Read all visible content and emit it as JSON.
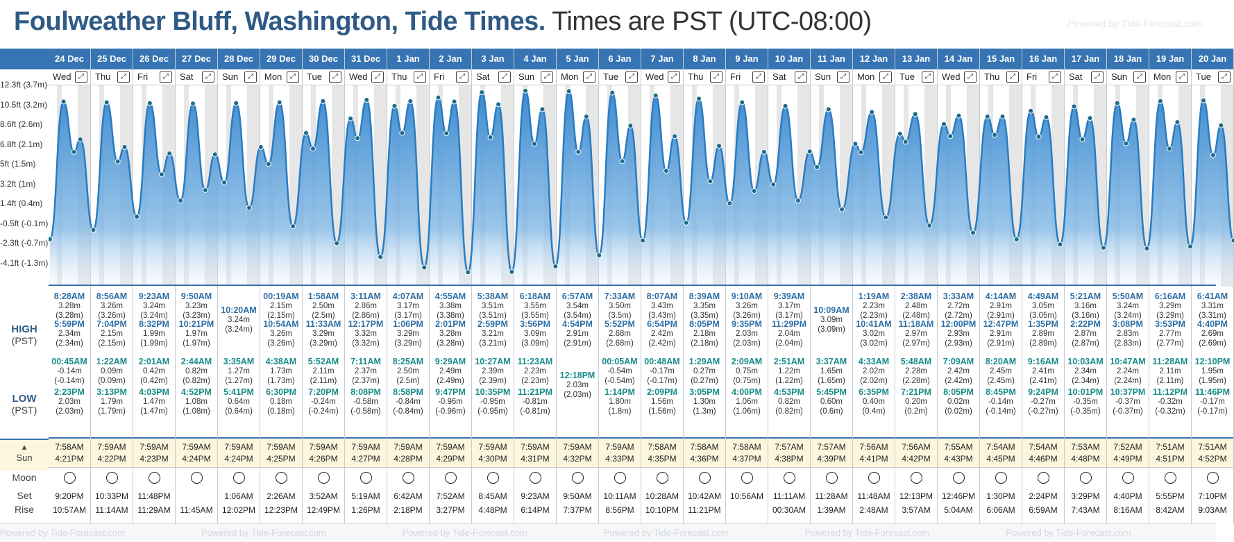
{
  "header": {
    "place": "Foulweather Bluff, Washington, Tide Times.",
    "timezone": "Times are PST (UTC-08:00)",
    "powered": "Powered by Tide-Forecast.com"
  },
  "yaxis": [
    "12.3ft (3.7m)",
    "10.5ft (3.2m)",
    "8.6ft (2.6m)",
    "6.8ft (2.1m)",
    "5ft (1.5m)",
    "3.2ft (1m)",
    "1.4ft (0.4m)",
    "-0.5ft (-0.1m)",
    "-2.3ft (-0.7m)",
    "-4.1ft (-1.3m)"
  ],
  "labels": {
    "high": "HIGH",
    "high_sub": "(PST)",
    "low": "LOW",
    "low_sub": "(PST)",
    "sun": "Sun",
    "moon": "Moon",
    "set": "Set",
    "rise": "Rise"
  },
  "days": [
    {
      "date": "24 Dec",
      "dow": "Wed",
      "h1": [
        "8:28AM",
        "3.28m",
        "(3.28m)"
      ],
      "h2": [
        "5:59PM",
        "2.34m",
        "(2.34m)"
      ],
      "l1": [
        "00:45AM",
        "-0.14m",
        "(-0.14m)"
      ],
      "l2": [
        "2:23PM",
        "2.03m",
        "(2.03m)"
      ],
      "sunrise": "7:58AM",
      "sunset": "4:21PM",
      "mset": "9:20PM",
      "mrise": "10:57AM"
    },
    {
      "date": "25 Dec",
      "dow": "Thu",
      "h1": [
        "8:56AM",
        "3.26m",
        "(3.26m)"
      ],
      "h2": [
        "7:04PM",
        "2.15m",
        "(2.15m)"
      ],
      "l1": [
        "1:22AM",
        "0.09m",
        "(0.09m)"
      ],
      "l2": [
        "3:13PM",
        "1.79m",
        "(1.79m)"
      ],
      "sunrise": "7:59AM",
      "sunset": "4:22PM",
      "mset": "10:33PM",
      "mrise": "11:14AM"
    },
    {
      "date": "26 Dec",
      "dow": "Fri",
      "h1": [
        "9:23AM",
        "3.24m",
        "(3.24m)"
      ],
      "h2": [
        "8:32PM",
        "1.99m",
        "(1.99m)"
      ],
      "l1": [
        "2:01AM",
        "0.42m",
        "(0.42m)"
      ],
      "l2": [
        "4:03PM",
        "1.47m",
        "(1.47m)"
      ],
      "sunrise": "7:59AM",
      "sunset": "4:23PM",
      "mset": "11:48PM",
      "mrise": "11:29AM"
    },
    {
      "date": "27 Dec",
      "dow": "Sat",
      "h1": [
        "9:50AM",
        "3.23m",
        "(3.23m)"
      ],
      "h2": [
        "10:21PM",
        "1.97m",
        "(1.97m)"
      ],
      "l1": [
        "2:44AM",
        "0.82m",
        "(0.82m)"
      ],
      "l2": [
        "4:52PM",
        "1.08m",
        "(1.08m)"
      ],
      "sunrise": "7:59AM",
      "sunset": "4:24PM",
      "mset": "",
      "mrise": "11:45AM"
    },
    {
      "date": "28 Dec",
      "dow": "Sun",
      "h1": [
        "10:20AM",
        "3.24m",
        "(3.24m)"
      ],
      "h2": null,
      "l1": [
        "3:35AM",
        "1.27m",
        "(1.27m)"
      ],
      "l2": [
        "5:41PM",
        "0.64m",
        "(0.64m)"
      ],
      "sunrise": "7:59AM",
      "sunset": "4:24PM",
      "mset": "1:06AM",
      "mrise": "12:02PM"
    },
    {
      "date": "29 Dec",
      "dow": "Mon",
      "h1": [
        "00:19AM",
        "2.15m",
        "(2.15m)"
      ],
      "h2": [
        "10:54AM",
        "3.26m",
        "(3.26m)"
      ],
      "l1": [
        "4:38AM",
        "1.73m",
        "(1.73m)"
      ],
      "l2": [
        "6:30PM",
        "0.18m",
        "(0.18m)"
      ],
      "sunrise": "7:59AM",
      "sunset": "4:25PM",
      "mset": "2:26AM",
      "mrise": "12:23PM"
    },
    {
      "date": "30 Dec",
      "dow": "Tue",
      "h1": [
        "1:58AM",
        "2.50m",
        "(2.5m)"
      ],
      "h2": [
        "11:33AM",
        "3.29m",
        "(3.29m)"
      ],
      "l1": [
        "5:52AM",
        "2.11m",
        "(2.11m)"
      ],
      "l2": [
        "7:20PM",
        "-0.24m",
        "(-0.24m)"
      ],
      "sunrise": "7:59AM",
      "sunset": "4:26PM",
      "mset": "3:52AM",
      "mrise": "12:49PM"
    },
    {
      "date": "31 Dec",
      "dow": "Wed",
      "h1": [
        "3:11AM",
        "2.86m",
        "(2.86m)"
      ],
      "h2": [
        "12:17PM",
        "3.32m",
        "(3.32m)"
      ],
      "l1": [
        "7:11AM",
        "2.37m",
        "(2.37m)"
      ],
      "l2": [
        "8:08PM",
        "-0.58m",
        "(-0.58m)"
      ],
      "sunrise": "7:59AM",
      "sunset": "4:27PM",
      "mset": "5:19AM",
      "mrise": "1:26PM"
    },
    {
      "date": "1 Jan",
      "dow": "Thu",
      "h1": [
        "4:07AM",
        "3.17m",
        "(3.17m)"
      ],
      "h2": [
        "1:06PM",
        "3.29m",
        "(3.29m)"
      ],
      "l1": [
        "8:25AM",
        "2.50m",
        "(2.5m)"
      ],
      "l2": [
        "8:58PM",
        "-0.84m",
        "(-0.84m)"
      ],
      "sunrise": "7:59AM",
      "sunset": "4:28PM",
      "mset": "6:42AM",
      "mrise": "2:18PM"
    },
    {
      "date": "2 Jan",
      "dow": "Fri",
      "h1": [
        "4:55AM",
        "3.38m",
        "(3.38m)"
      ],
      "h2": [
        "2:01PM",
        "3.28m",
        "(3.28m)"
      ],
      "l1": [
        "9:29AM",
        "2.49m",
        "(2.49m)"
      ],
      "l2": [
        "9:47PM",
        "-0.96m",
        "(-0.96m)"
      ],
      "sunrise": "7:59AM",
      "sunset": "4:29PM",
      "mset": "7:52AM",
      "mrise": "3:27PM"
    },
    {
      "date": "3 Jan",
      "dow": "Sat",
      "h1": [
        "5:38AM",
        "3.51m",
        "(3.51m)"
      ],
      "h2": [
        "2:59PM",
        "3.21m",
        "(3.21m)"
      ],
      "l1": [
        "10:27AM",
        "2.39m",
        "(2.39m)"
      ],
      "l2": [
        "10:35PM",
        "-0.95m",
        "(-0.95m)"
      ],
      "sunrise": "7:59AM",
      "sunset": "4:30PM",
      "mset": "8:45AM",
      "mrise": "4:48PM"
    },
    {
      "date": "4 Jan",
      "dow": "Sun",
      "h1": [
        "6:18AM",
        "3.55m",
        "(3.55m)"
      ],
      "h2": [
        "3:56PM",
        "3.09m",
        "(3.09m)"
      ],
      "l1": [
        "11:23AM",
        "2.23m",
        "(2.23m)"
      ],
      "l2": [
        "11:21PM",
        "-0.81m",
        "(-0.81m)"
      ],
      "sunrise": "7:59AM",
      "sunset": "4:31PM",
      "mset": "9:23AM",
      "mrise": "6:14PM"
    },
    {
      "date": "5 Jan",
      "dow": "Mon",
      "h1": [
        "6:57AM",
        "3.54m",
        "(3.54m)"
      ],
      "h2": [
        "4:54PM",
        "2.91m",
        "(2.91m)"
      ],
      "l1": [
        "12:18PM",
        "2.03m",
        "(2.03m)"
      ],
      "l2": null,
      "sunrise": "7:59AM",
      "sunset": "4:32PM",
      "mset": "9:50AM",
      "mrise": "7:37PM"
    },
    {
      "date": "6 Jan",
      "dow": "Tue",
      "h1": [
        "7:33AM",
        "3.50m",
        "(3.5m)"
      ],
      "h2": [
        "5:52PM",
        "2.68m",
        "(2.68m)"
      ],
      "l1": [
        "00:05AM",
        "-0.54m",
        "(-0.54m)"
      ],
      "l2": [
        "1:14PM",
        "1.80m",
        "(1.8m)"
      ],
      "sunrise": "7:59AM",
      "sunset": "4:33PM",
      "mset": "10:11AM",
      "mrise": "8:56PM"
    },
    {
      "date": "7 Jan",
      "dow": "Wed",
      "h1": [
        "8:07AM",
        "3.43m",
        "(3.43m)"
      ],
      "h2": [
        "6:54PM",
        "2.42m",
        "(2.42m)"
      ],
      "l1": [
        "00:48AM",
        "-0.17m",
        "(-0.17m)"
      ],
      "l2": [
        "2:09PM",
        "1.56m",
        "(1.56m)"
      ],
      "sunrise": "7:58AM",
      "sunset": "4:35PM",
      "mset": "10:28AM",
      "mrise": "10:10PM"
    },
    {
      "date": "8 Jan",
      "dow": "Thu",
      "h1": [
        "8:39AM",
        "3.35m",
        "(3.35m)"
      ],
      "h2": [
        "8:05PM",
        "2.18m",
        "(2.18m)"
      ],
      "l1": [
        "1:29AM",
        "0.27m",
        "(0.27m)"
      ],
      "l2": [
        "3:05PM",
        "1.30m",
        "(1.3m)"
      ],
      "sunrise": "7:58AM",
      "sunset": "4:36PM",
      "mset": "10:42AM",
      "mrise": "11:21PM"
    },
    {
      "date": "9 Jan",
      "dow": "Fri",
      "h1": [
        "9:10AM",
        "3.26m",
        "(3.26m)"
      ],
      "h2": [
        "9:35PM",
        "2.03m",
        "(2.03m)"
      ],
      "l1": [
        "2:09AM",
        "0.75m",
        "(0.75m)"
      ],
      "l2": [
        "4:00PM",
        "1.06m",
        "(1.06m)"
      ],
      "sunrise": "7:58AM",
      "sunset": "4:37PM",
      "mset": "10:56AM",
      "mrise": ""
    },
    {
      "date": "10 Jan",
      "dow": "Sat",
      "h1": [
        "9:39AM",
        "3.17m",
        "(3.17m)"
      ],
      "h2": [
        "11:29PM",
        "2.04m",
        "(2.04m)"
      ],
      "l1": [
        "2:51AM",
        "1.22m",
        "(1.22m)"
      ],
      "l2": [
        "4:53PM",
        "0.82m",
        "(0.82m)"
      ],
      "sunrise": "7:57AM",
      "sunset": "4:38PM",
      "mset": "11:11AM",
      "mrise": "00:30AM"
    },
    {
      "date": "11 Jan",
      "dow": "Sun",
      "h1": [
        "10:09AM",
        "3.09m",
        "(3.09m)"
      ],
      "h2": null,
      "l1": [
        "3:37AM",
        "1.65m",
        "(1.65m)"
      ],
      "l2": [
        "5:45PM",
        "0.60m",
        "(0.6m)"
      ],
      "sunrise": "7:57AM",
      "sunset": "4:39PM",
      "mset": "11:28AM",
      "mrise": "1:39AM"
    },
    {
      "date": "12 Jan",
      "dow": "Mon",
      "h1": [
        "1:19AM",
        "2.23m",
        "(2.23m)"
      ],
      "h2": [
        "10:41AM",
        "3.02m",
        "(3.02m)"
      ],
      "l1": [
        "4:33AM",
        "2.02m",
        "(2.02m)"
      ],
      "l2": [
        "6:35PM",
        "0.40m",
        "(0.4m)"
      ],
      "sunrise": "7:56AM",
      "sunset": "4:41PM",
      "mset": "11:48AM",
      "mrise": "2:48AM"
    },
    {
      "date": "13 Jan",
      "dow": "Tue",
      "h1": [
        "2:38AM",
        "2.48m",
        "(2.48m)"
      ],
      "h2": [
        "11:18AM",
        "2.97m",
        "(2.97m)"
      ],
      "l1": [
        "5:48AM",
        "2.28m",
        "(2.28m)"
      ],
      "l2": [
        "7:21PM",
        "0.20m",
        "(0.2m)"
      ],
      "sunrise": "7:56AM",
      "sunset": "4:42PM",
      "mset": "12:13PM",
      "mrise": "3:57AM"
    },
    {
      "date": "14 Jan",
      "dow": "Wed",
      "h1": [
        "3:33AM",
        "2.72m",
        "(2.72m)"
      ],
      "h2": [
        "12:00PM",
        "2.93m",
        "(2.93m)"
      ],
      "l1": [
        "7:09AM",
        "2.42m",
        "(2.42m)"
      ],
      "l2": [
        "8:05PM",
        "0.02m",
        "(0.02m)"
      ],
      "sunrise": "7:55AM",
      "sunset": "4:43PM",
      "mset": "12:46PM",
      "mrise": "5:04AM"
    },
    {
      "date": "15 Jan",
      "dow": "Thu",
      "h1": [
        "4:14AM",
        "2.91m",
        "(2.91m)"
      ],
      "h2": [
        "12:47PM",
        "2.91m",
        "(2.91m)"
      ],
      "l1": [
        "8:20AM",
        "2.45m",
        "(2.45m)"
      ],
      "l2": [
        "8:45PM",
        "-0.14m",
        "(-0.14m)"
      ],
      "sunrise": "7:54AM",
      "sunset": "4:45PM",
      "mset": "1:30PM",
      "mrise": "6:06AM"
    },
    {
      "date": "16 Jan",
      "dow": "Fri",
      "h1": [
        "4:49AM",
        "3.05m",
        "(3.05m)"
      ],
      "h2": [
        "1:35PM",
        "2.89m",
        "(2.89m)"
      ],
      "l1": [
        "9:16AM",
        "2.41m",
        "(2.41m)"
      ],
      "l2": [
        "9:24PM",
        "-0.27m",
        "(-0.27m)"
      ],
      "sunrise": "7:54AM",
      "sunset": "4:46PM",
      "mset": "2:24PM",
      "mrise": "6:59AM"
    },
    {
      "date": "17 Jan",
      "dow": "Sat",
      "h1": [
        "5:21AM",
        "3.16m",
        "(3.16m)"
      ],
      "h2": [
        "2:22PM",
        "2.87m",
        "(2.87m)"
      ],
      "l1": [
        "10:03AM",
        "2.34m",
        "(2.34m)"
      ],
      "l2": [
        "10:01PM",
        "-0.35m",
        "(-0.35m)"
      ],
      "sunrise": "7:53AM",
      "sunset": "4:48PM",
      "mset": "3:29PM",
      "mrise": "7:43AM"
    },
    {
      "date": "18 Jan",
      "dow": "Sun",
      "h1": [
        "5:50AM",
        "3.24m",
        "(3.24m)"
      ],
      "h2": [
        "3:08PM",
        "2.83m",
        "(2.83m)"
      ],
      "l1": [
        "10:47AM",
        "2.24m",
        "(2.24m)"
      ],
      "l2": [
        "10:37PM",
        "-0.37m",
        "(-0.37m)"
      ],
      "sunrise": "7:52AM",
      "sunset": "4:49PM",
      "mset": "4:40PM",
      "mrise": "8:16AM"
    },
    {
      "date": "19 Jan",
      "dow": "Mon",
      "h1": [
        "6:16AM",
        "3.29m",
        "(3.29m)"
      ],
      "h2": [
        "3:53PM",
        "2.77m",
        "(2.77m)"
      ],
      "l1": [
        "11:28AM",
        "2.11m",
        "(2.11m)"
      ],
      "l2": [
        "11:12PM",
        "-0.32m",
        "(-0.32m)"
      ],
      "sunrise": "7:51AM",
      "sunset": "4:51PM",
      "mset": "5:55PM",
      "mrise": "8:42AM"
    },
    {
      "date": "20 Jan",
      "dow": "Tue",
      "h1": [
        "6:41AM",
        "3.31m",
        "(3.31m)"
      ],
      "h2": [
        "4:40PM",
        "2.69m",
        "(2.69m)"
      ],
      "l1": [
        "12:10PM",
        "1.95m",
        "(1.95m)"
      ],
      "l2": [
        "11:46PM",
        "-0.17m",
        "(-0.17m)"
      ],
      "sunrise": "7:51AM",
      "sunset": "4:52PM",
      "mset": "7:10PM",
      "mrise": "9:03AM"
    }
  ],
  "colors": {
    "accent": "#3774b3",
    "title": "#2f5a85",
    "sunrow": "#fbf6dc"
  }
}
